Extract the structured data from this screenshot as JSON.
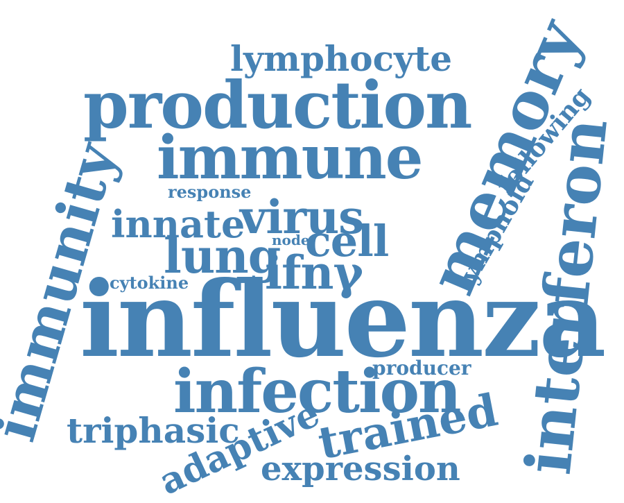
{
  "cloud": {
    "color": "#4682b4",
    "background": "#ffffff",
    "words": {
      "influenza": "influenza",
      "immune": "immune",
      "production": "production",
      "memory": "memory",
      "interferon": "interferon",
      "immunity": "immunity",
      "infection": "infection",
      "virus": "virus",
      "cell": "cell",
      "lung": "lung",
      "ifny": "ifnγ",
      "innate": "innate",
      "trained": "trained",
      "adaptive": "adaptive",
      "expression": "expression",
      "triphasic": "triphasic",
      "lymphocyte": "lymphocyte",
      "lymphoid": "lymphoid",
      "following": "following",
      "producer": "producer",
      "cytokine": "cytokine",
      "response": "response",
      "node": "node"
    }
  }
}
